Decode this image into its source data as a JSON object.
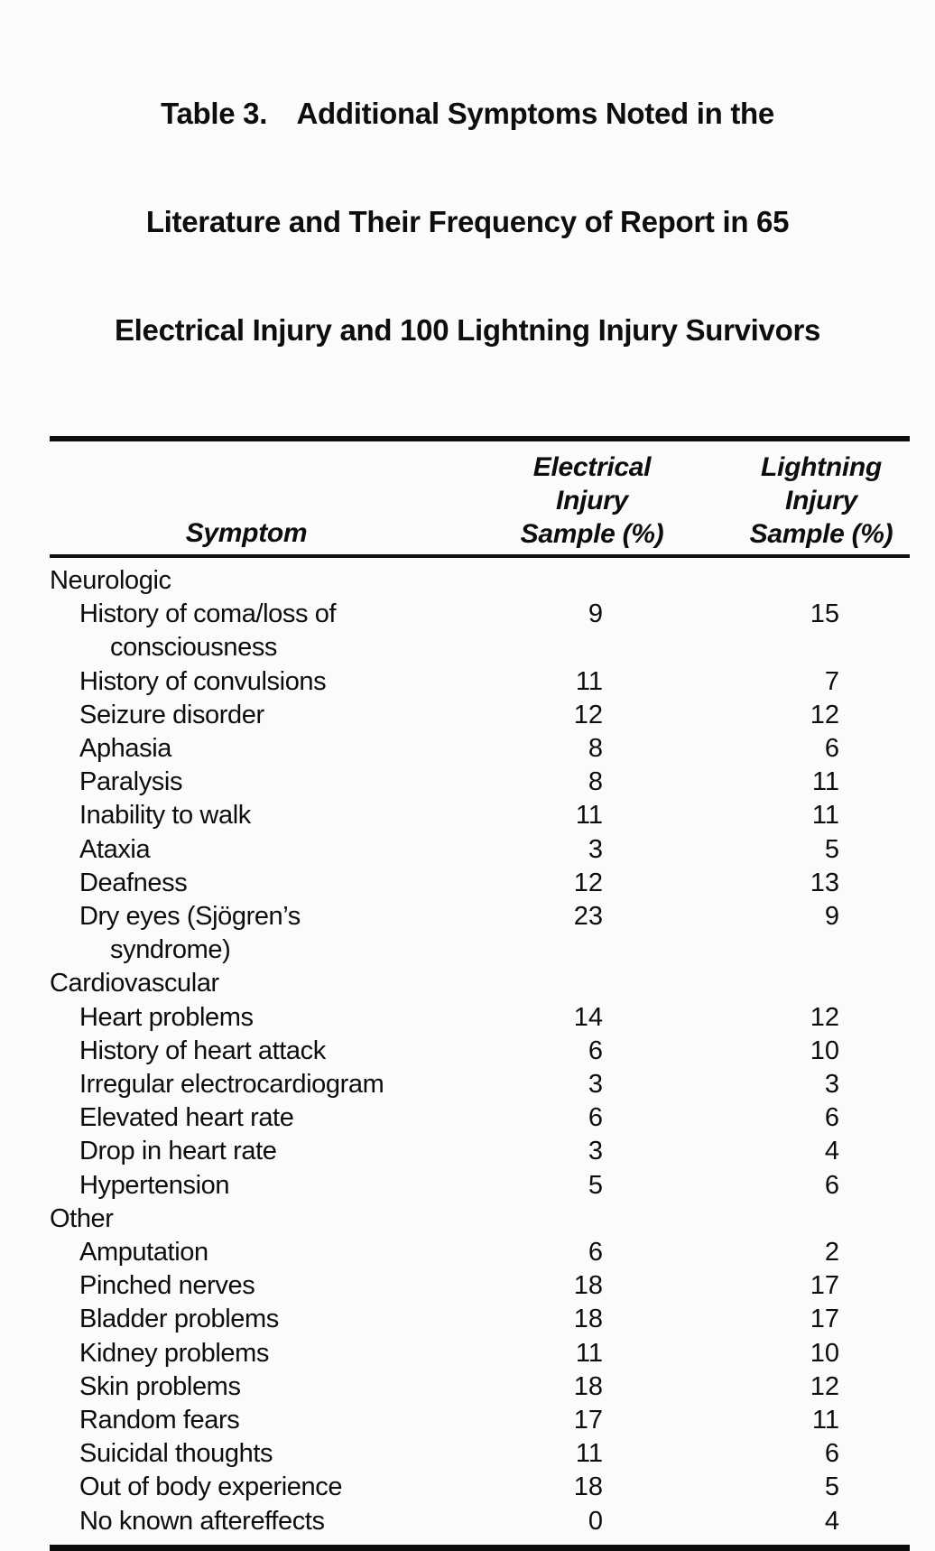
{
  "page": {
    "background": "#fbfbfb",
    "text_color": "#0d0d0d"
  },
  "table": {
    "title_lines": [
      "Table 3.  Additional Symptoms Noted in the",
      "Literature and Their Frequency of Report in 65",
      "Electrical Injury and 100 Lightning Injury Survivors"
    ],
    "columns": {
      "symptom": "Symptom",
      "electrical": [
        "Electrical",
        "Injury",
        "Sample (%)"
      ],
      "lightning": [
        "Lightning",
        "Injury",
        "Sample (%)"
      ]
    },
    "rows": [
      {
        "type": "section",
        "label": "Neurologic"
      },
      {
        "type": "item",
        "label": "History of coma/loss of",
        "label2": "consciousness",
        "electrical": "9",
        "lightning": "15"
      },
      {
        "type": "item",
        "label": "History of convulsions",
        "electrical": "11",
        "lightning": "7"
      },
      {
        "type": "item",
        "label": "Seizure disorder",
        "electrical": "12",
        "lightning": "12"
      },
      {
        "type": "item",
        "label": "Aphasia",
        "electrical": "8",
        "lightning": "6"
      },
      {
        "type": "item",
        "label": "Paralysis",
        "electrical": "8",
        "lightning": "11"
      },
      {
        "type": "item",
        "label": "Inability to walk",
        "electrical": "11",
        "lightning": "11"
      },
      {
        "type": "item",
        "label": "Ataxia",
        "electrical": "3",
        "lightning": "5"
      },
      {
        "type": "item",
        "label": "Deafness",
        "electrical": "12",
        "lightning": "13"
      },
      {
        "type": "item",
        "label": "Dry eyes (Sjögren’s",
        "label2": "syndrome)",
        "electrical": "23",
        "lightning": "9"
      },
      {
        "type": "section",
        "label": "Cardiovascular"
      },
      {
        "type": "item",
        "label": "Heart problems",
        "electrical": "14",
        "lightning": "12"
      },
      {
        "type": "item",
        "label": "History of heart attack",
        "electrical": "6",
        "lightning": "10"
      },
      {
        "type": "item",
        "label": "Irregular electrocardiogram",
        "electrical": "3",
        "lightning": "3"
      },
      {
        "type": "item",
        "label": "Elevated heart rate",
        "electrical": "6",
        "lightning": "6"
      },
      {
        "type": "item",
        "label": "Drop in heart rate",
        "electrical": "3",
        "lightning": "4"
      },
      {
        "type": "item",
        "label": "Hypertension",
        "electrical": "5",
        "lightning": "6"
      },
      {
        "type": "section",
        "label": "Other"
      },
      {
        "type": "item",
        "label": "Amputation",
        "electrical": "6",
        "lightning": "2"
      },
      {
        "type": "item",
        "label": "Pinched nerves",
        "electrical": "18",
        "lightning": "17"
      },
      {
        "type": "item",
        "label": "Bladder problems",
        "electrical": "18",
        "lightning": "17"
      },
      {
        "type": "item",
        "label": "Kidney problems",
        "electrical": "11",
        "lightning": "10"
      },
      {
        "type": "item",
        "label": "Skin problems",
        "electrical": "18",
        "lightning": "12"
      },
      {
        "type": "item",
        "label": "Random fears",
        "electrical": "17",
        "lightning": "11"
      },
      {
        "type": "item",
        "label": "Suicidal thoughts",
        "electrical": "11",
        "lightning": "6"
      },
      {
        "type": "item",
        "label": "Out of body experience",
        "electrical": "18",
        "lightning": "5"
      },
      {
        "type": "item",
        "label": "No known aftereffects",
        "electrical": "0",
        "lightning": "4"
      }
    ]
  }
}
